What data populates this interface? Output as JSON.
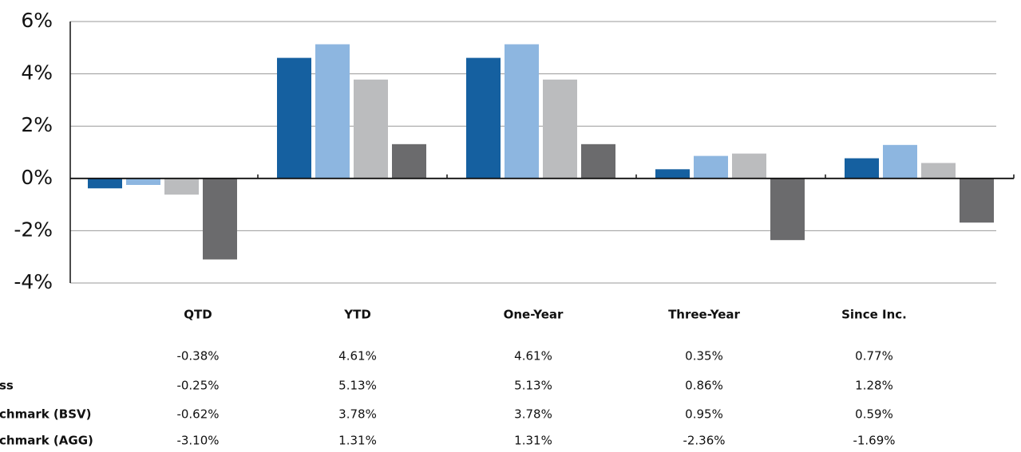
{
  "chart_data": {
    "type": "bar",
    "categories": [
      "QTD",
      "YTD",
      "One-Year",
      "Three-Year",
      "Since Inc."
    ],
    "ylim": [
      -4,
      6
    ],
    "yticks": [
      {
        "value": -4,
        "label": "-4%"
      },
      {
        "value": -2,
        "label": "-2%"
      },
      {
        "value": 0,
        "label": "0%"
      },
      {
        "value": 2,
        "label": "2%"
      },
      {
        "value": 4,
        "label": "4%"
      },
      {
        "value": 6,
        "label": "6%"
      }
    ],
    "grid": true,
    "series": [
      {
        "color": "#1560a0",
        "values": [
          -0.38,
          4.61,
          4.61,
          0.35,
          0.77
        ],
        "value_labels": [
          "-0.38%",
          "4.61%",
          "4.61%",
          "0.35%",
          "0.77%"
        ]
      },
      {
        "name": "ss",
        "color": "#8db6e0",
        "values": [
          -0.25,
          5.13,
          5.13,
          0.86,
          1.28
        ],
        "value_labels": [
          "-0.25%",
          "5.13%",
          "5.13%",
          "0.86%",
          "1.28%"
        ]
      },
      {
        "name": "chmark (BSV)",
        "color": "#bbbcbe",
        "values": [
          -0.62,
          3.78,
          3.78,
          0.95,
          0.59
        ],
        "value_labels": [
          "-0.62%",
          "3.78%",
          "3.78%",
          "0.95%",
          "0.59%"
        ]
      },
      {
        "name": "chmark (AGG)",
        "color": "#6b6b6d",
        "values": [
          -3.1,
          1.31,
          1.31,
          -2.36,
          -1.69
        ],
        "value_labels": [
          "-3.10%",
          "1.31%",
          "1.31%",
          "-2.36%",
          "-1.69%"
        ]
      }
    ]
  }
}
